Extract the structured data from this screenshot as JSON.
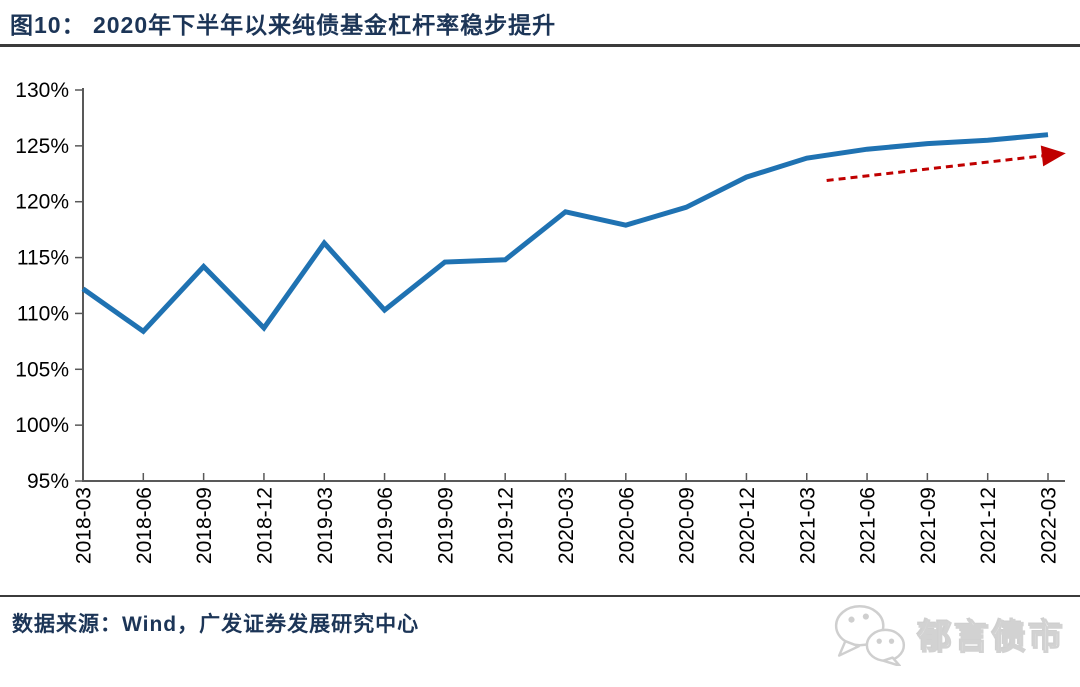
{
  "header": {
    "title": "图10：  2020年下半年以来纯债基金杠杆率稳步提升"
  },
  "colors": {
    "title_text": "#1C3557",
    "line": "#1F72B2",
    "arrow": "#C00000",
    "axis": "#595959",
    "tick_text": "#000000",
    "rule": "#3B3B3B",
    "watermark_gray": "#CFCFCF"
  },
  "chart_data": {
    "type": "line",
    "title": "2020年下半年以来纯债基金杠杆率稳步提升",
    "xlabel": "",
    "ylabel": "",
    "x_categories": [
      "2018-03",
      "2018-06",
      "2018-09",
      "2018-12",
      "2019-03",
      "2019-06",
      "2019-09",
      "2019-12",
      "2020-03",
      "2020-06",
      "2020-09",
      "2020-12",
      "2021-03",
      "2021-06",
      "2021-09",
      "2021-12",
      "2022-03"
    ],
    "series": [
      {
        "name": "纯债基金杠杆率",
        "color": "#1F72B2",
        "values": [
          112.2,
          108.4,
          114.2,
          108.7,
          116.3,
          110.3,
          114.6,
          114.8,
          119.1,
          117.9,
          119.5,
          122.2,
          123.9,
          124.7,
          125.2,
          125.5,
          126.0
        ]
      }
    ],
    "ylim": [
      95,
      130
    ],
    "y_ticks": {
      "values": [
        95,
        100,
        105,
        110,
        115,
        120,
        125,
        130
      ],
      "labels": [
        "95%",
        "100%",
        "105%",
        "110%",
        "115%",
        "120%",
        "125%",
        "130%"
      ]
    },
    "grid": false,
    "legend_position": "none",
    "x_label_rotation": -90,
    "annotation": {
      "type": "dashed-arrow",
      "color": "#C00000",
      "from": {
        "x_index": 12.33,
        "value": 121.9
      },
      "to": {
        "x_index": 15.9,
        "value": 124.1
      }
    }
  },
  "footer": {
    "source": "数据来源：Wind，广发证券发展研究中心",
    "watermark_text": "郁言债市"
  }
}
